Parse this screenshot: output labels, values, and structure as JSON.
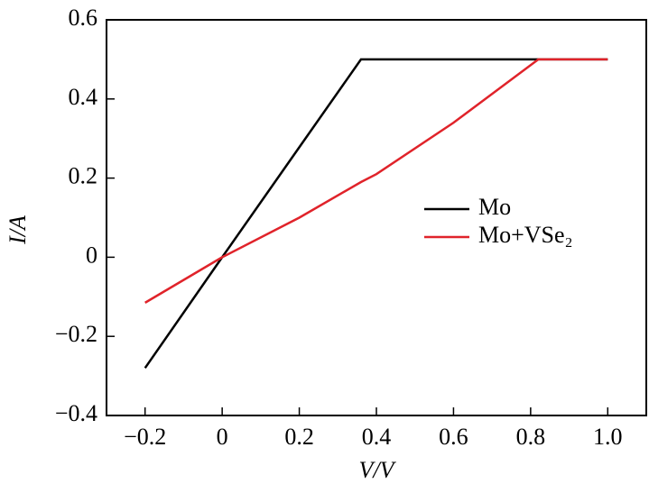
{
  "chart_data": {
    "type": "line",
    "x_label": "V/V",
    "y_label": "I/A",
    "x": [
      -0.2,
      0,
      0.2,
      0.36,
      0.4,
      0.6,
      0.82,
      1.0
    ],
    "series": [
      {
        "name": "Mo",
        "color": "#000000",
        "values": [
          -0.28,
          0,
          0.278,
          0.5,
          0.5,
          0.5,
          0.5,
          0.5
        ]
      },
      {
        "name": "Mo+VSe₂",
        "color": "#e0232a",
        "values": [
          -0.115,
          0,
          0.1,
          0.19,
          0.21,
          0.34,
          0.5,
          0.5
        ]
      }
    ],
    "xlim": [
      -0.3,
      1.1
    ],
    "xticks": [
      {
        "value": -0.2,
        "label": "−0.2"
      },
      0,
      0.2,
      0.4,
      0.6,
      0.8,
      {
        "value": 1.0,
        "label": "1.0"
      }
    ],
    "ylim": [
      -0.4,
      0.6
    ],
    "yticks": [
      {
        "value": -0.4,
        "label": "−0.4"
      },
      {
        "value": -0.2,
        "label": "−0.2"
      },
      0,
      0.2,
      0.4,
      0.6
    ],
    "legend": "right"
  }
}
